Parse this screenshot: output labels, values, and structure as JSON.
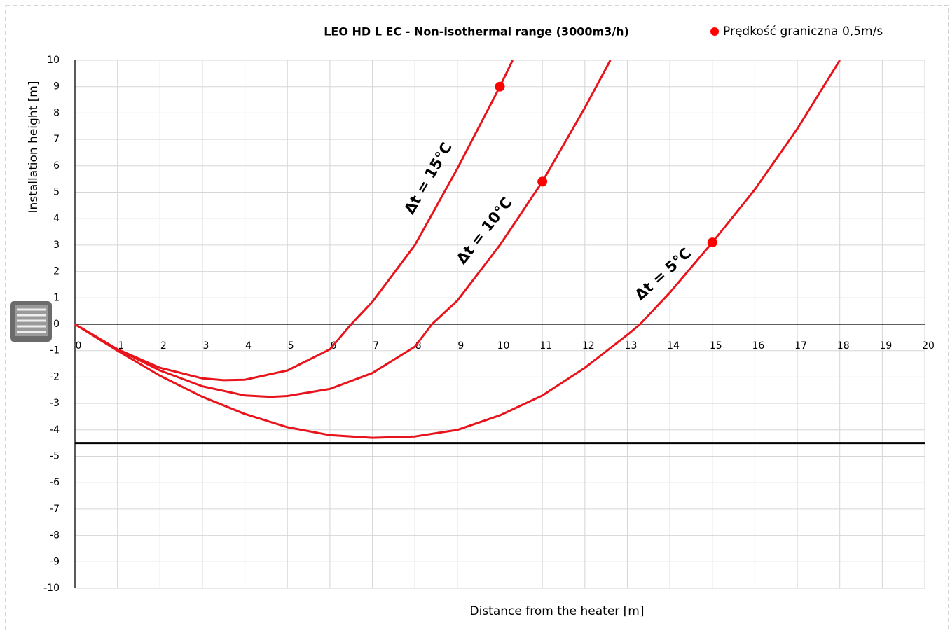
{
  "chart_data": {
    "type": "line",
    "title": "LEO HD L EC - Non-isothermal range (3000m3/h)",
    "x_label": "Distance from the heater [m]",
    "y_label": "Installation height [m]",
    "xlim": [
      0,
      20
    ],
    "ylim": [
      -10,
      10
    ],
    "xticks": [
      0,
      1,
      2,
      3,
      4,
      5,
      6,
      7,
      8,
      9,
      10,
      11,
      12,
      13,
      14,
      15,
      16,
      17,
      18,
      19,
      20
    ],
    "yticks": [
      -10,
      -9,
      -8,
      -7,
      -6,
      -5,
      -4,
      -3,
      -2,
      -1,
      0,
      1,
      2,
      3,
      4,
      5,
      6,
      7,
      8,
      9,
      10
    ],
    "grid": true,
    "hline": -4.5,
    "series": [
      {
        "name": "Δt = 15°C",
        "color": "#e8141b",
        "x": [
          0,
          1,
          2,
          3,
          3.5,
          4,
          5,
          6,
          6.5,
          7,
          8,
          9,
          10,
          10.3
        ],
        "values": [
          0,
          -0.95,
          -1.65,
          -2.05,
          -2.12,
          -2.1,
          -1.75,
          -0.95,
          0,
          0.85,
          3.0,
          5.9,
          9.0,
          10
        ]
      },
      {
        "name": "Δt = 10°C",
        "color": "#e8141b",
        "x": [
          0,
          1,
          2,
          3,
          4,
          4.6,
          5,
          6,
          7,
          8,
          8.4,
          9,
          10,
          11,
          12,
          12.6
        ],
        "values": [
          0,
          -0.95,
          -1.75,
          -2.35,
          -2.7,
          -2.75,
          -2.72,
          -2.45,
          -1.85,
          -0.85,
          0,
          0.9,
          3.0,
          5.4,
          8.2,
          10
        ]
      },
      {
        "name": "Δt = 5°C",
        "color": "#e8141b",
        "x": [
          0,
          1,
          2,
          3,
          4,
          5,
          6,
          7,
          8,
          9,
          10,
          11,
          12,
          13,
          13.3,
          14,
          15,
          16,
          17,
          18
        ],
        "values": [
          0,
          -1.0,
          -1.95,
          -2.75,
          -3.4,
          -3.9,
          -4.2,
          -4.3,
          -4.25,
          -4.0,
          -3.45,
          -2.7,
          -1.65,
          -0.4,
          0,
          1.2,
          3.1,
          5.1,
          7.4,
          10
        ]
      }
    ],
    "markers": {
      "name": "Prędkość graniczna 0,5m/s",
      "color": "#ff0000",
      "x": [
        10,
        11,
        15
      ],
      "values": [
        9,
        5.4,
        3.1
      ]
    }
  }
}
